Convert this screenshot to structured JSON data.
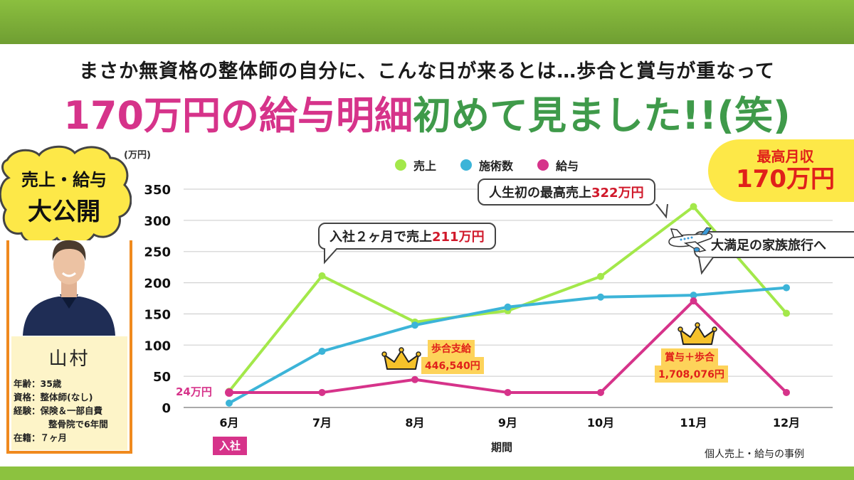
{
  "header": {
    "subtitle": "まさか無資格の整体師の自分に、こんな日が来るとは…歩合と賞与が重なって",
    "headline_pink": "170万円の給与明細",
    "headline_green": "初めて見ました!!(笑)"
  },
  "cloud": {
    "line1": "売上・給与",
    "line2": "大公開"
  },
  "profile": {
    "name": "山村",
    "age_label": "年齢：",
    "age": "35歳",
    "qual_label": "資格：",
    "qual": "整体師(なし)",
    "exp_label": "経験：",
    "exp_line1": "保険＆一部自費",
    "exp_line2": "整骨院で6年間",
    "tenure_label": "在籍：",
    "tenure": "７ヶ月"
  },
  "badge": {
    "label": "最高月収",
    "value": "170万円"
  },
  "callouts": {
    "c1_text": "入社２ヶ月で売上",
    "c1_value": "211万円",
    "c2_text": "人生初の最高売上",
    "c2_value": "322万円",
    "c3_text": "大満足の家族旅行へ"
  },
  "tags": {
    "aug_line1": "歩合支給",
    "aug_line2": "446,540円",
    "nov_line1": "賞与＋歩合",
    "nov_line2": "1,708,076円",
    "start_salary": "24万円"
  },
  "join_label": "入社",
  "source_note": "個人売上・給与の事例",
  "colors": {
    "sales": "#a3e84a",
    "treatments": "#3cb4d8",
    "salary": "#d6338a",
    "accent_red": "#e0201a"
  },
  "chart_data": {
    "type": "line",
    "title": "",
    "xlabel": "期間",
    "ylabel": "(万円)",
    "ylim": [
      0,
      350
    ],
    "yticks": [
      0,
      50,
      100,
      150,
      200,
      250,
      300,
      350
    ],
    "grid": true,
    "legend_position": "top-center",
    "categories": [
      "6月",
      "7月",
      "8月",
      "9月",
      "10月",
      "11月",
      "12月"
    ],
    "series": [
      {
        "name": "売上",
        "color": "#a3e84a",
        "values": [
          26,
          211,
          137,
          155,
          210,
          322,
          151
        ]
      },
      {
        "name": "施術数",
        "color": "#3cb4d8",
        "values": [
          7,
          90,
          132,
          161,
          177,
          180,
          192
        ]
      },
      {
        "name": "給与",
        "color": "#d6338a",
        "values": [
          24,
          24,
          44.7,
          24,
          24,
          170.8,
          24
        ]
      }
    ]
  }
}
